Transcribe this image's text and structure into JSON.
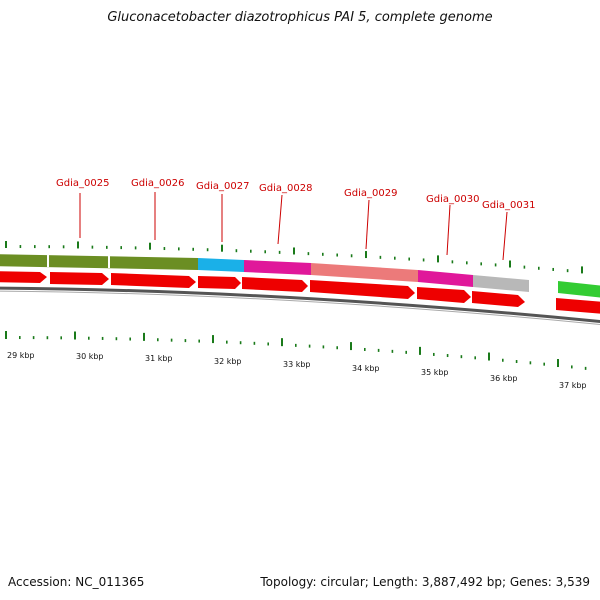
{
  "title": "Gluconacetobacter diazotrophicus PAI 5, complete genome",
  "footer": {
    "accession": "Accession: NC_011365",
    "stats": "Topology: circular; Length: 3,887,492 bp; Genes: 3,539"
  },
  "gene_labels": [
    "Gdia_0025",
    "Gdia_0026",
    "Gdia_0027",
    "Gdia_0028",
    "Gdia_0029",
    "Gdia_0030",
    "Gdia_0031"
  ],
  "kbp_labels": [
    "29 kbp",
    "30 kbp",
    "31 kbp",
    "32 kbp",
    "33 kbp",
    "34 kbp",
    "35 kbp",
    "36 kbp",
    "37 kbp"
  ],
  "colors": {
    "olive": "#6b8e23",
    "cyan": "#1ab0e8",
    "magenta": "#e0189a",
    "salmon": "#ec7a7a",
    "gray": "#b8b8b8",
    "green": "#33cc33",
    "red_arrow": "#ee0000",
    "tick": "#1a7a1a",
    "label": "#cc0000"
  }
}
